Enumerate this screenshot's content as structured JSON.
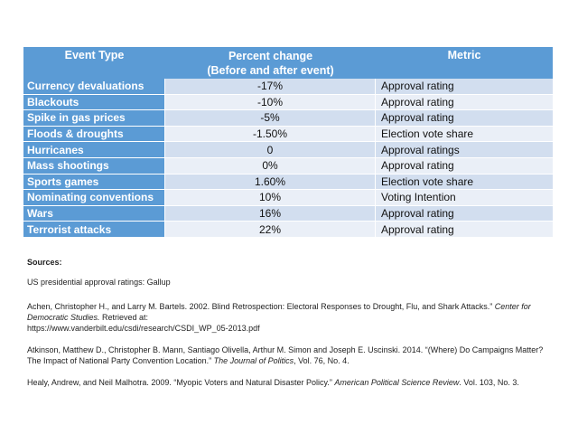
{
  "table": {
    "headers": {
      "event_type": "Event Type",
      "percent_line1": "Percent change",
      "percent_line2": "(Before and after event)",
      "metric": "Metric"
    },
    "rows": [
      {
        "type": "Currency devaluations",
        "pct": "-17%",
        "metric": "Approval rating"
      },
      {
        "type": "Blackouts",
        "pct": "-10%",
        "metric": "Approval rating"
      },
      {
        "type": "Spike in gas prices",
        "pct": "-5%",
        "metric": "Approval rating"
      },
      {
        "type": "Floods & droughts",
        "pct": "-1.50%",
        "metric": "Election vote share"
      },
      {
        "type": "Hurricanes",
        "pct": "0",
        "metric": "Approval ratings"
      },
      {
        "type": "Mass shootings",
        "pct": "0%",
        "metric": "Approval rating"
      },
      {
        "type": "Sports games",
        "pct": "1.60%",
        "metric": "Election vote share"
      },
      {
        "type": "Nominating conventions",
        "pct": "10%",
        "metric": "Voting Intention"
      },
      {
        "type": "Wars",
        "pct": "16%",
        "metric": "Approval rating"
      },
      {
        "type": "Terrorist attacks",
        "pct": "22%",
        "metric": "Approval rating"
      }
    ]
  },
  "sources": {
    "heading": "Sources:",
    "approval": "US presidential approval ratings: Gallup",
    "achen": {
      "pre": "Achen, Christopher H., and Larry M. Bartels. 2002. Blind Retrospection: Electoral Responses to Drought, Flu, and Shark Attacks.” ",
      "journal": "Center for Democratic Studies.",
      "post": " Retrieved at:",
      "url": "https://www.vanderbilt.edu/csdi/research/CSDI_WP_05-2013.pdf"
    },
    "atkinson": {
      "pre": "Atkinson, Matthew D., Christopher B. Mann, Santiago Olivella, Arthur M. Simon and Joseph E. Uscinski. 2014. “(Where) Do Campaigns Matter? The Impact of National Party Convention Location.” ",
      "journal": "The Journal of Politics",
      "post": ", Vol. 76, No. 4."
    },
    "healy": {
      "pre": "Healy, Andrew, and Neil Malhotra. 2009. “Myopic Voters and Natural Disaster Policy.” ",
      "journal": "American Political Science Review",
      "post": ". Vol. 103, No. 3."
    }
  }
}
